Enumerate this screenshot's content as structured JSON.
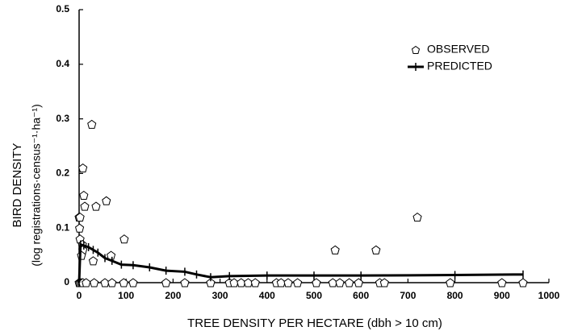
{
  "chart_data": {
    "type": "scatter",
    "xlabel": "TREE DENSITY PER HECTARE (dbh > 10 cm)",
    "ylabel": [
      "BIRD DENSITY",
      "(log registrations·census⁻¹·ha⁻¹)"
    ],
    "xlim": [
      0,
      1000
    ],
    "xticks": [
      0,
      100,
      200,
      300,
      400,
      500,
      600,
      700,
      800,
      900,
      1000
    ],
    "ylim": [
      0,
      0.5
    ],
    "yticks": [
      0,
      0.1,
      0.2,
      0.3,
      0.4,
      0.5
    ],
    "legend": "upper right",
    "series": [
      {
        "name": "OBSERVED",
        "color": "#000000",
        "marker": "pentagon",
        "x": [
          0,
          2,
          1,
          2,
          8,
          10,
          12,
          27,
          36,
          58,
          68,
          30,
          96,
          7,
          8,
          5,
          545,
          632,
          720,
          0,
          2,
          5,
          8,
          15,
          32,
          55,
          70,
          95,
          115,
          185,
          225,
          280,
          320,
          330,
          345,
          360,
          375,
          420,
          430,
          445,
          465,
          505,
          540,
          555,
          575,
          595,
          640,
          650,
          790,
          900,
          945
        ],
        "values": [
          0.12,
          0.12,
          0.1,
          0.08,
          0.21,
          0.16,
          0.14,
          0.29,
          0.14,
          0.15,
          0.05,
          0.04,
          0.08,
          0.07,
          0.06,
          0.05,
          0.06,
          0.06,
          0.12,
          0,
          0,
          0,
          0,
          0,
          0,
          0,
          0,
          0,
          0,
          0,
          0,
          0,
          0,
          0,
          0,
          0,
          0,
          0,
          0,
          0,
          0,
          0,
          0,
          0,
          0,
          0,
          0,
          0,
          0,
          0,
          0
        ]
      },
      {
        "name": "PREDICTED",
        "color": "#000000",
        "marker": "tick",
        "x": [
          0,
          3,
          10,
          20,
          30,
          40,
          55,
          70,
          90,
          115,
          150,
          185,
          225,
          250,
          280,
          320,
          400,
          500,
          600,
          800,
          945
        ],
        "values": [
          0,
          0.07,
          0.068,
          0.065,
          0.06,
          0.055,
          0.045,
          0.04,
          0.033,
          0.032,
          0.028,
          0.022,
          0.02,
          0.015,
          0.01,
          0.012,
          0.013,
          0.013,
          0.013,
          0.014,
          0.015
        ]
      }
    ]
  }
}
